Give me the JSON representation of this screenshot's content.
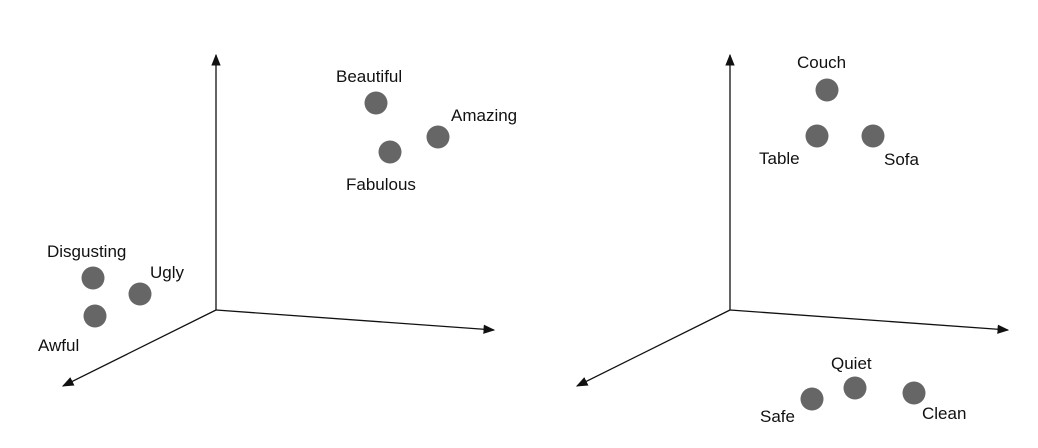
{
  "colors": {
    "axis": "#111111",
    "point": "#666666",
    "background": "#ffffff"
  },
  "left_space": {
    "points": [
      {
        "label": "Beautiful"
      },
      {
        "label": "Amazing"
      },
      {
        "label": "Fabulous"
      },
      {
        "label": "Disgusting"
      },
      {
        "label": "Ugly"
      },
      {
        "label": "Awful"
      }
    ]
  },
  "right_space": {
    "points": [
      {
        "label": "Couch"
      },
      {
        "label": "Table"
      },
      {
        "label": "Sofa"
      },
      {
        "label": "Quiet"
      },
      {
        "label": "Safe"
      },
      {
        "label": "Clean"
      }
    ]
  }
}
